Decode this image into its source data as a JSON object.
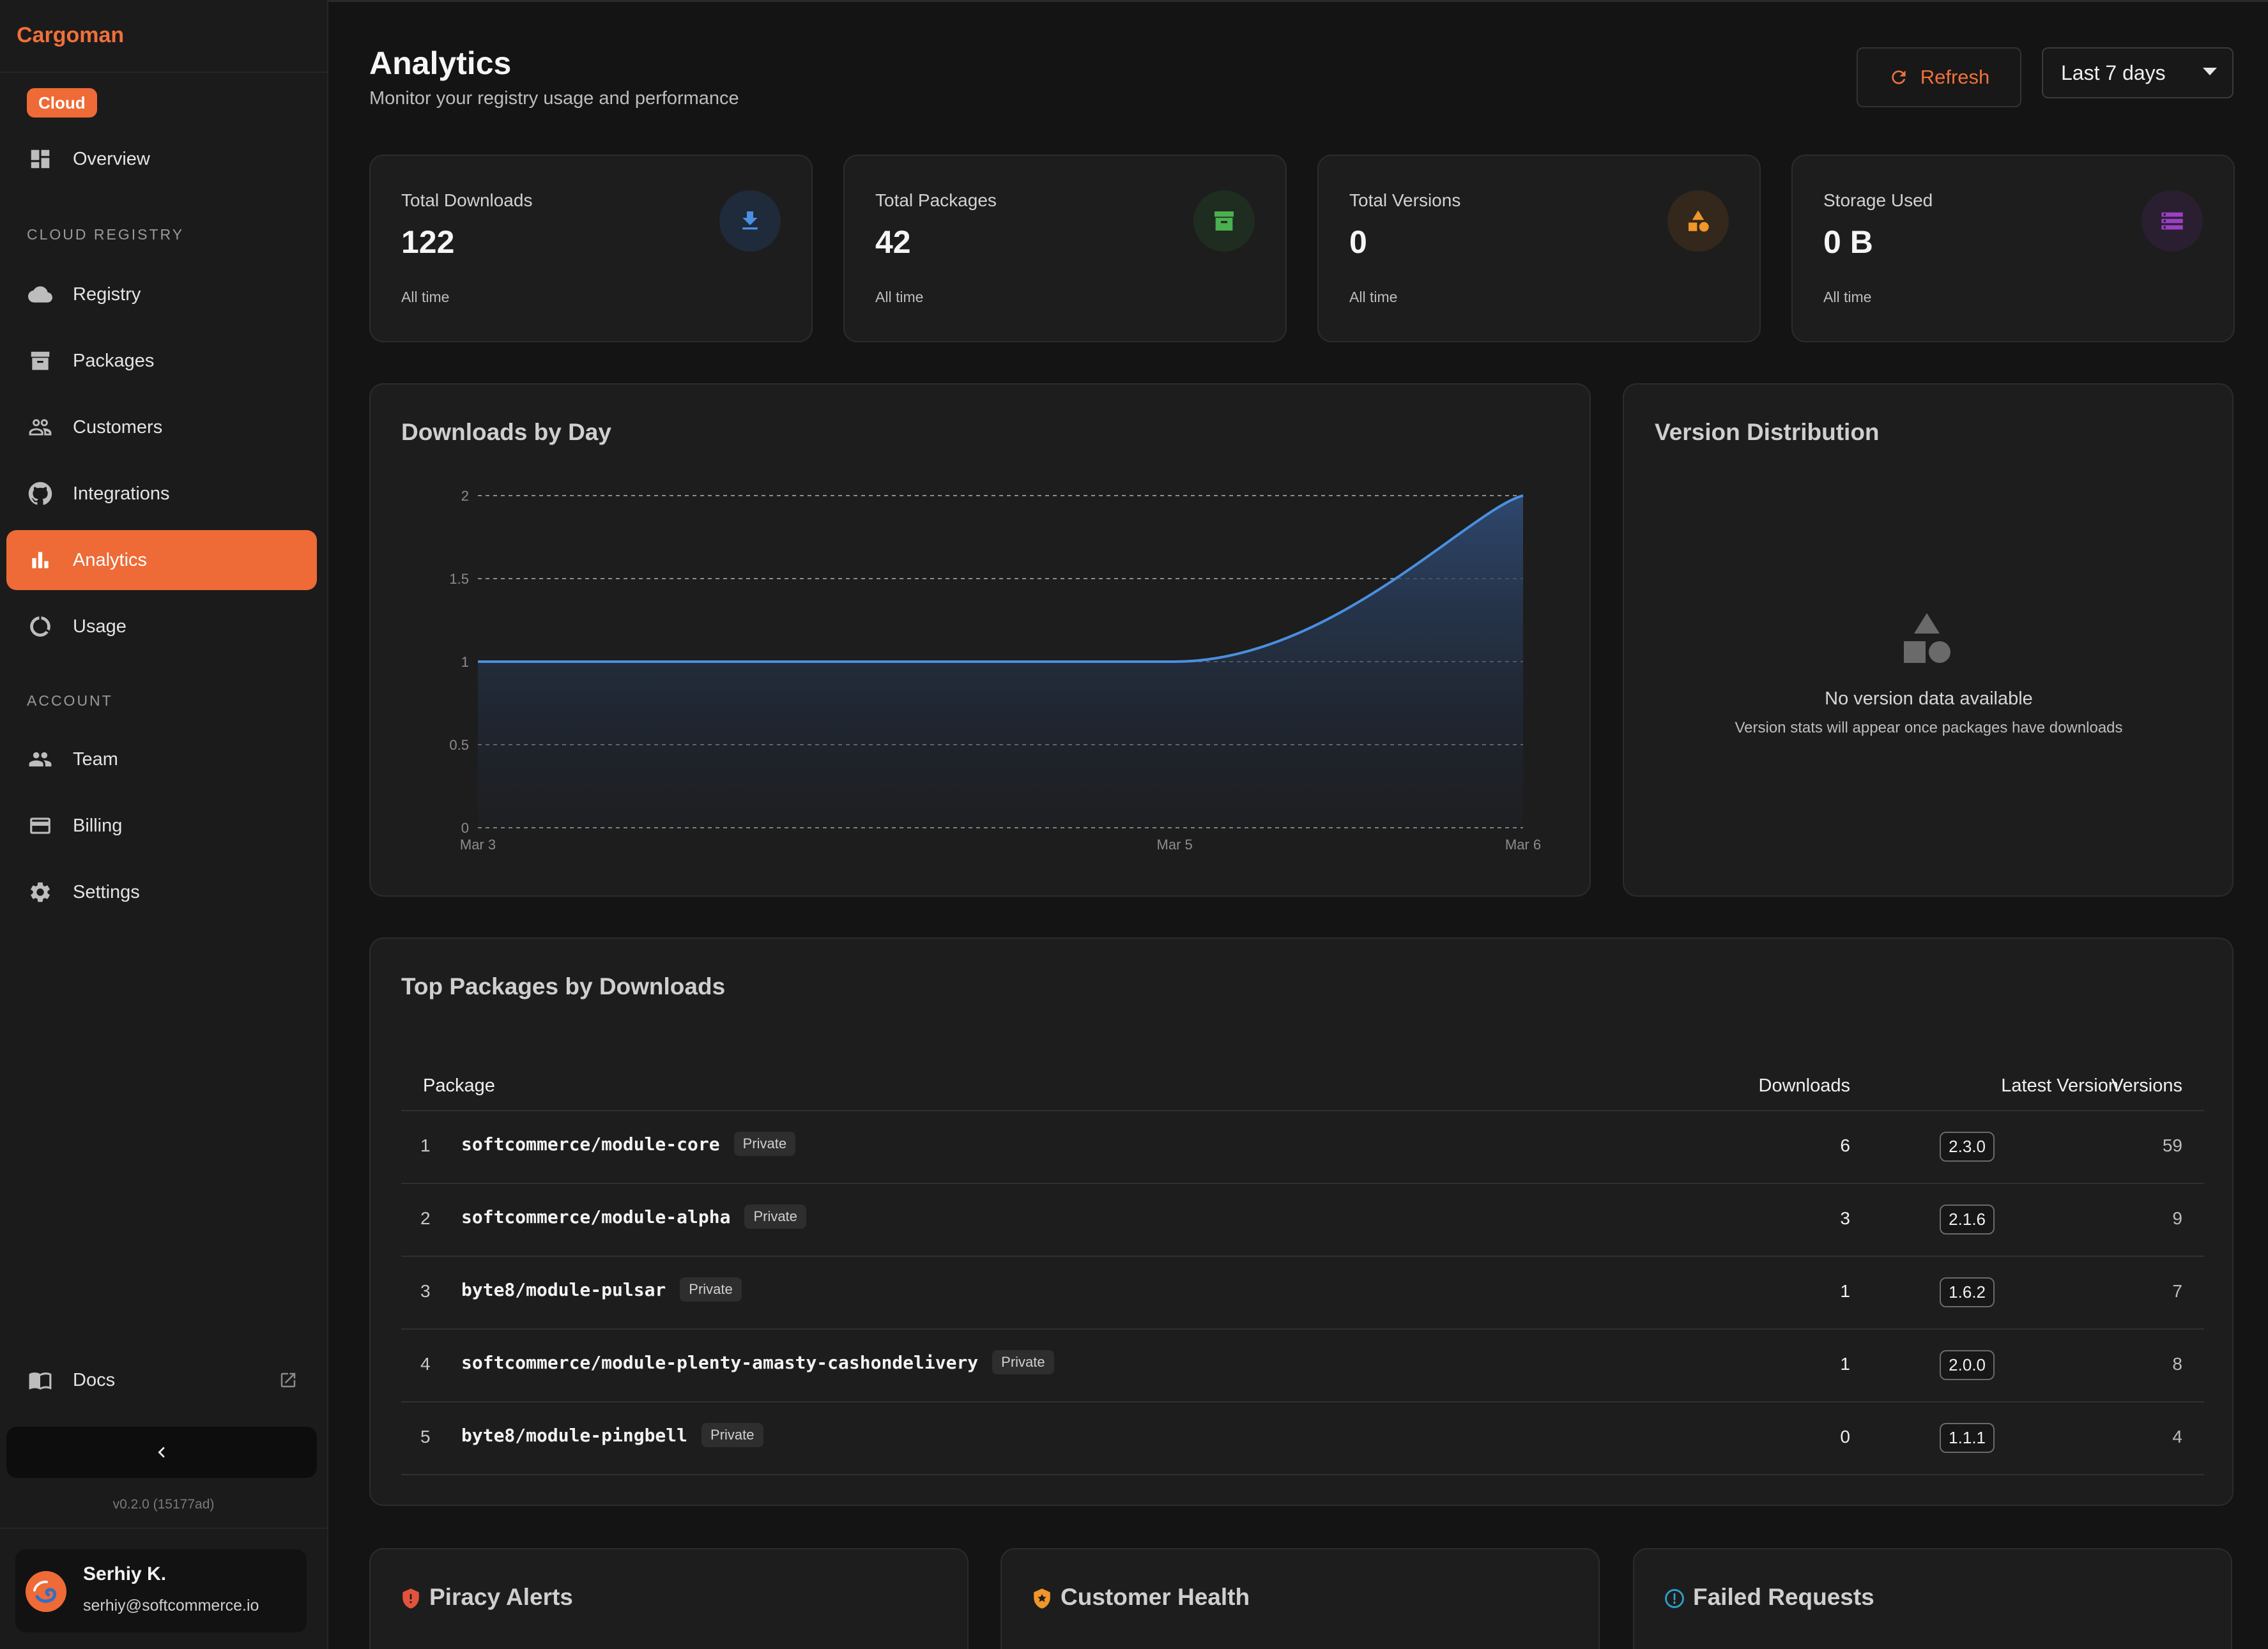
{
  "app": {
    "brand": "Cargoman",
    "plan_badge": "Cloud",
    "version": "v0.2.0 (15177ad)"
  },
  "sidebar": {
    "top_items": [
      {
        "label": "Overview",
        "icon": "dashboard-icon"
      }
    ],
    "sections": [
      {
        "title": "CLOUD REGISTRY",
        "items": [
          {
            "label": "Registry",
            "icon": "cloud-icon"
          },
          {
            "label": "Packages",
            "icon": "archive-icon"
          },
          {
            "label": "Customers",
            "icon": "users-icon"
          },
          {
            "label": "Integrations",
            "icon": "github-icon"
          },
          {
            "label": "Analytics",
            "icon": "bar-chart-icon",
            "active": true
          },
          {
            "label": "Usage",
            "icon": "donut-icon"
          }
        ]
      },
      {
        "title": "ACCOUNT",
        "items": [
          {
            "label": "Team",
            "icon": "team-icon"
          },
          {
            "label": "Billing",
            "icon": "credit-card-icon"
          },
          {
            "label": "Settings",
            "icon": "gear-icon"
          }
        ]
      }
    ],
    "docs_label": "Docs",
    "user": {
      "name": "Serhiy K.",
      "email": "serhiy@softcommerce.io"
    }
  },
  "header": {
    "title": "Analytics",
    "subtitle": "Monitor your registry usage and performance",
    "refresh_label": "Refresh",
    "range": "Last 7 days"
  },
  "stats": [
    {
      "label": "Total Downloads",
      "value": "122",
      "sub": "All time",
      "icon": "download-icon",
      "color": "#4a8fe0",
      "bg": "#1f2a3a"
    },
    {
      "label": "Total Packages",
      "value": "42",
      "sub": "All time",
      "icon": "archive-icon",
      "color": "#4caf50",
      "bg": "#1e2d20"
    },
    {
      "label": "Total Versions",
      "value": "0",
      "sub": "All time",
      "icon": "shapes-icon",
      "color": "#f0962a",
      "bg": "#33281b"
    },
    {
      "label": "Storage Used",
      "value": "0 B",
      "sub": "All time",
      "icon": "storage-icon",
      "color": "#9c3fc4",
      "bg": "#2a1f31"
    }
  ],
  "downloads_chart": {
    "title": "Downloads by Day"
  },
  "chart_data": {
    "type": "area",
    "title": "Downloads by Day",
    "x": [
      "Mar 3",
      "Mar 4",
      "Mar 5",
      "Mar 6"
    ],
    "x_tick_labels": [
      "Mar 3",
      "Mar 5",
      "Mar 6"
    ],
    "series": [
      {
        "values": [
          1,
          1,
          1,
          2
        ]
      }
    ],
    "y_ticks": [
      "0",
      "0.5",
      "1",
      "1.5",
      "2"
    ],
    "ylim": [
      0,
      2
    ],
    "grid": true,
    "color": "#4a8fe0"
  },
  "version_distribution": {
    "title": "Version Distribution",
    "empty_title": "No version data available",
    "empty_sub": "Version stats will appear once packages have downloads"
  },
  "top_packages": {
    "title": "Top Packages by Downloads",
    "columns": {
      "package": "Package",
      "downloads": "Downloads",
      "latest": "Latest Version",
      "versions": "Versions"
    },
    "private_label": "Private",
    "rows": [
      {
        "rank": "1",
        "name": "softcommerce/module-core",
        "downloads": "6",
        "latest": "2.3.0",
        "versions": "59"
      },
      {
        "rank": "2",
        "name": "softcommerce/module-alpha",
        "downloads": "3",
        "latest": "2.1.6",
        "versions": "9"
      },
      {
        "rank": "3",
        "name": "byte8/module-pulsar",
        "downloads": "1",
        "latest": "1.6.2",
        "versions": "7"
      },
      {
        "rank": "4",
        "name": "softcommerce/module-plenty-amasty-cashondelivery",
        "downloads": "1",
        "latest": "2.0.0",
        "versions": "8"
      },
      {
        "rank": "5",
        "name": "byte8/module-pingbell",
        "downloads": "0",
        "latest": "1.1.1",
        "versions": "4"
      }
    ]
  },
  "bottom_cards": [
    {
      "title": "Piracy Alerts",
      "icon": "shield-alert-icon",
      "color": "#e2533d"
    },
    {
      "title": "Customer Health",
      "icon": "shield-icon",
      "color": "#f0962a"
    },
    {
      "title": "Failed Requests",
      "icon": "info-circle-icon",
      "color": "#2ba3c9"
    }
  ]
}
